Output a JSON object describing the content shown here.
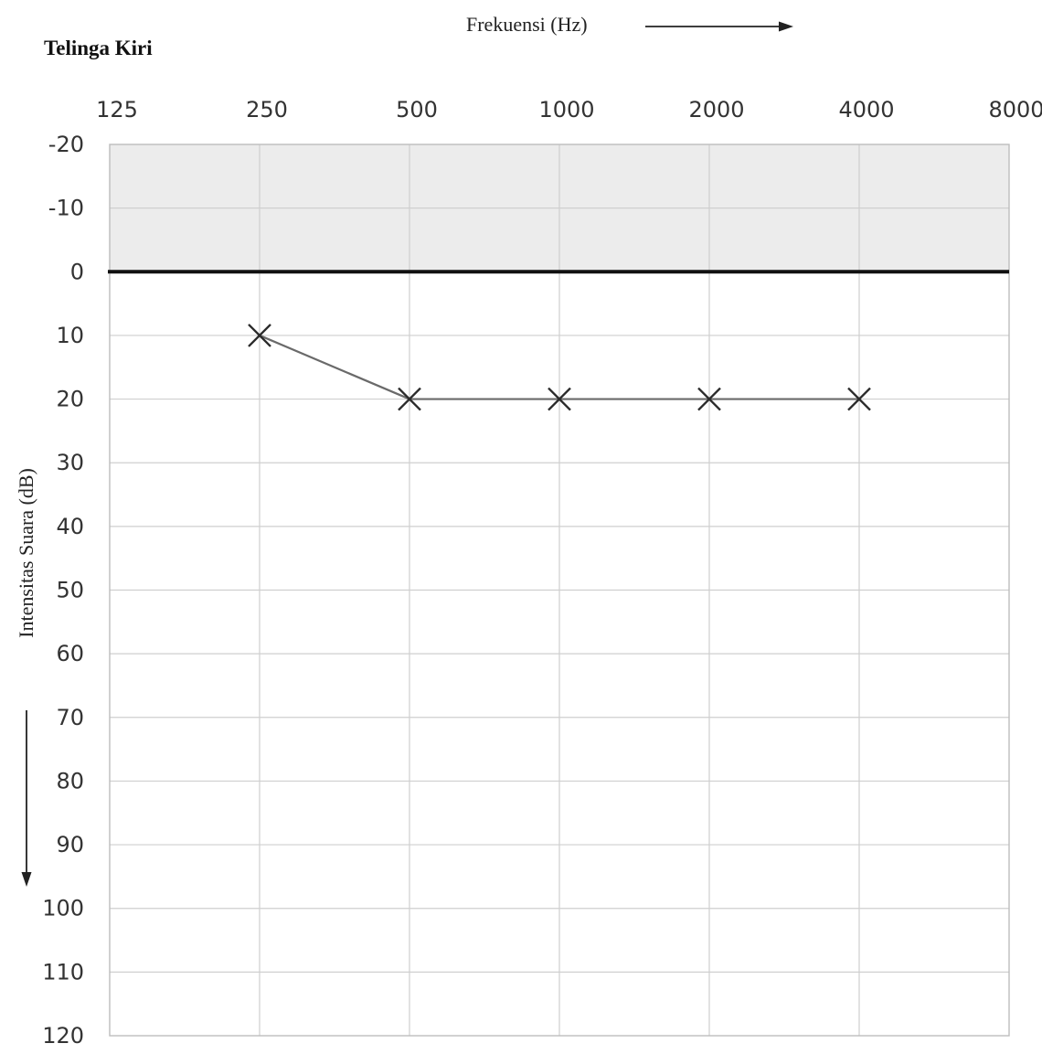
{
  "chart_data": {
    "type": "line",
    "title": "Telinga Kiri",
    "xlabel": "Frekuensi (Hz)",
    "ylabel": "Intensitas Suara (dB)",
    "x_ticks": [
      "125",
      "250",
      "500",
      "1000",
      "2000",
      "4000",
      "8000"
    ],
    "y_ticks": [
      "-20",
      "-10",
      "0",
      "10",
      "20",
      "30",
      "40",
      "50",
      "60",
      "70",
      "80",
      "90",
      "100",
      "110",
      "120"
    ],
    "ylim": [
      -20,
      120
    ],
    "y_inverted": true,
    "x_scale": "log2",
    "reference_line_db": 0,
    "grid": true,
    "series": [
      {
        "marker": "x",
        "points": [
          {
            "x": 250,
            "y": 10
          },
          {
            "x": 500,
            "y": 20
          },
          {
            "x": 1000,
            "y": 20
          },
          {
            "x": 2000,
            "y": 20
          },
          {
            "x": 4000,
            "y": 20
          }
        ]
      }
    ],
    "colors": {
      "normal_band": "#ececec",
      "grid": "#cfcfcf",
      "reference_line": "#111111",
      "series_line": "#6a6a6a",
      "marker": "#2a2a2a"
    }
  }
}
